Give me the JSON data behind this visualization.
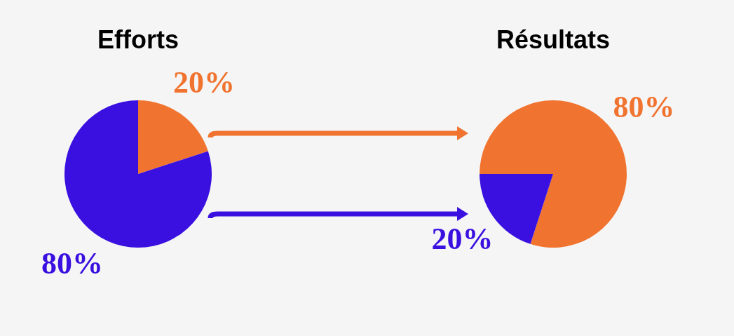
{
  "chart_data": [
    {
      "type": "pie",
      "title": "Efforts",
      "categories": [
        null,
        null
      ],
      "values": [
        20,
        80
      ],
      "colors": [
        "#f07430",
        "#3a10e0"
      ],
      "value_labels": [
        "20%",
        "80%"
      ]
    },
    {
      "type": "pie",
      "title": "Résultats",
      "categories": [
        null,
        null
      ],
      "values": [
        80,
        20
      ],
      "colors": [
        "#f07430",
        "#3a10e0"
      ],
      "value_labels": [
        "80%",
        "20%"
      ]
    }
  ]
}
